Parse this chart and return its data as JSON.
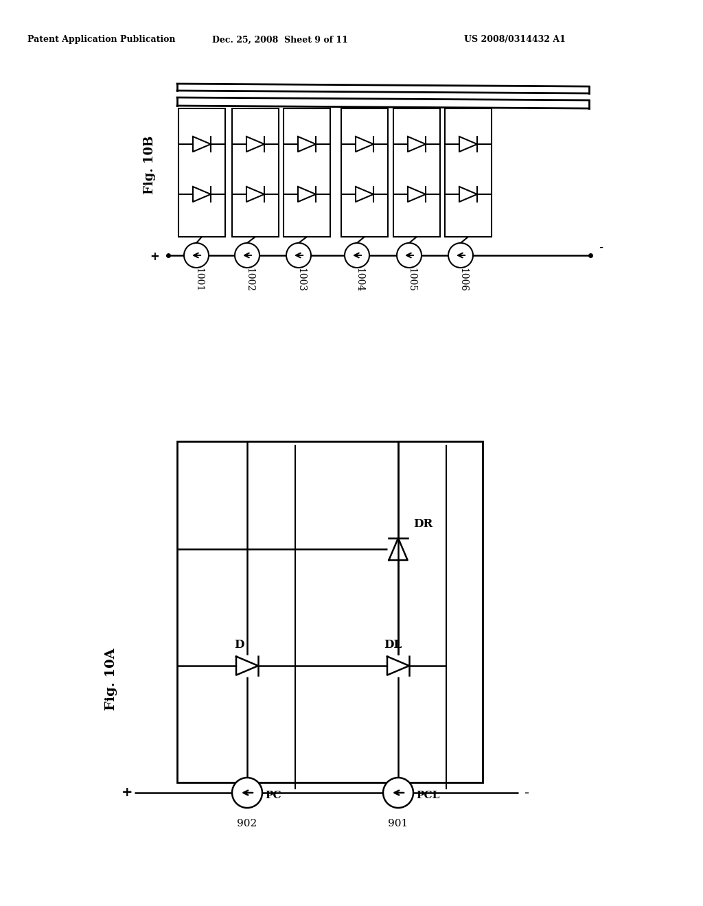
{
  "bg_color": "#ffffff",
  "line_color": "#000000",
  "header_text": "Patent Application Publication",
  "header_date": "Dec. 25, 2008  Sheet 9 of 11",
  "header_patent": "US 2008/0314432 A1",
  "fig10b_label": "Fig. 10B",
  "fig10a_label": "Fig. 10A",
  "fig10b_numbers": [
    "1001",
    "1002",
    "1003",
    "1004",
    "1005",
    "1006"
  ],
  "fig10a_pc_label": "PC",
  "fig10a_pcl_label": "PCL",
  "fig10a_d_label": "D",
  "fig10a_dl_label": "DL",
  "fig10a_dr_label": "DR",
  "fig10a_num1": "902",
  "fig10a_num2": "901",
  "plus_label": "+",
  "minus_label": "-"
}
